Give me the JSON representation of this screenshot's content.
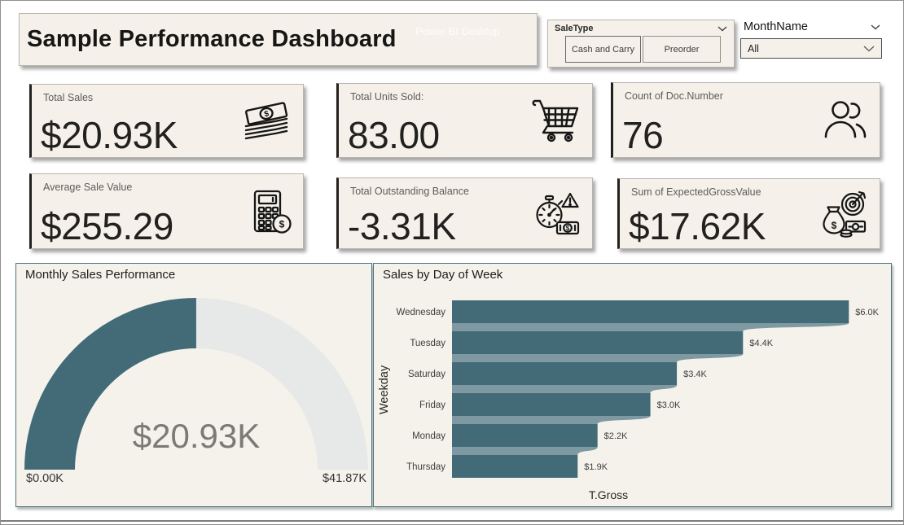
{
  "header": {
    "title": "Sample Performance Dashboard",
    "watermark": "Power BI Desktop"
  },
  "filters": {
    "sale_type": {
      "label": "SaleType",
      "options": [
        "Cash and Carry",
        "Preorder"
      ]
    },
    "month": {
      "label": "MonthName",
      "value": "All"
    }
  },
  "kpis": [
    {
      "label": "Total Sales",
      "value": "$20.93K",
      "icon": "money-stack-icon"
    },
    {
      "label": "Total Units Sold:",
      "value": "83.00",
      "icon": "shopping-cart-icon"
    },
    {
      "label": "Count of Doc.Number",
      "value": "76",
      "icon": "people-icon"
    },
    {
      "label": "Average Sale Value",
      "value": "$255.29",
      "icon": "calculator-dollar-icon"
    },
    {
      "label": "Total Outstanding Balance",
      "value": "-3.31K",
      "icon": "stopwatch-alert-icon"
    },
    {
      "label": "Sum of ExpectedGrossValue",
      "value": "$17.62K",
      "icon": "money-bag-target-icon"
    }
  ],
  "chart_data": [
    {
      "type": "gauge",
      "title": "Monthly Sales Performance",
      "value": 20.93,
      "min": 0,
      "max": 41.87,
      "value_label": "$20.93K",
      "min_label": "$0.00K",
      "max_label": "$41.87K",
      "fill_color": "#426b77",
      "track_color": "#e7e9e8"
    },
    {
      "type": "bar",
      "title": "Sales by Day of Week",
      "orientation": "horizontal",
      "categories": [
        "Wednesday",
        "Tuesday",
        "Saturday",
        "Friday",
        "Monday",
        "Thursday"
      ],
      "values": [
        6.0,
        4.4,
        3.4,
        3.0,
        2.2,
        1.9
      ],
      "value_labels": [
        "$6.0K",
        "$4.4K",
        "$3.4K",
        "$3.0K",
        "$2.2K",
        "$1.9K"
      ],
      "xlabel": "T.Gross",
      "ylabel": "Weekday",
      "xlim": [
        0,
        6.6
      ],
      "grid": false,
      "legend": false,
      "bar_color": "#426b77",
      "connector_color": "#7e99a1"
    }
  ],
  "colors": {
    "card_bg": "#f5f1ea",
    "accent_teal": "#426b77",
    "kpi_border": "#b9b5ad",
    "chart_border": "#4a7580"
  }
}
